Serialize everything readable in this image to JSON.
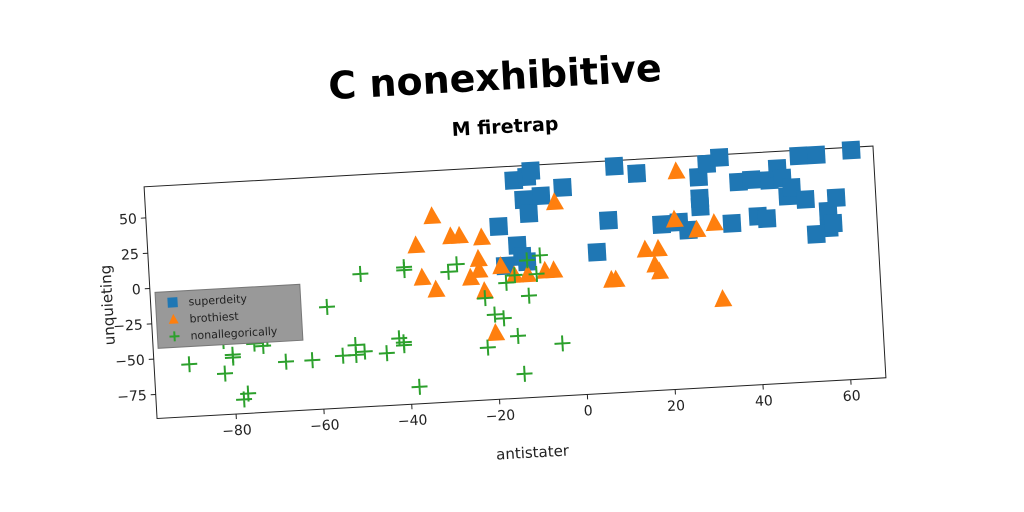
{
  "chart_data": {
    "type": "scatter",
    "suptitle": "C nonexhibitive",
    "title": "M firetrap",
    "xlabel": "antistater",
    "ylabel": "unquieting",
    "xlim": [
      -98,
      68
    ],
    "ylim": [
      -92,
      72
    ],
    "xticks": [
      -80,
      -60,
      -40,
      -20,
      0,
      20,
      40,
      60
    ],
    "yticks": [
      -75,
      -50,
      -25,
      0,
      25,
      50
    ],
    "grid": false,
    "legend_position": "center-left",
    "series": [
      {
        "name": "superdeity",
        "marker": "square",
        "color": "#1f77b4",
        "points": [
          [
            -18,
            30
          ],
          [
            -14,
            62
          ],
          [
            -11,
            64
          ],
          [
            -10,
            68
          ],
          [
            -8,
            50
          ],
          [
            -3,
            55
          ],
          [
            -12,
            48
          ],
          [
            -11,
            38
          ],
          [
            -14,
            16
          ],
          [
            -13,
            8
          ],
          [
            -12,
            4
          ],
          [
            -17,
            2
          ],
          [
            4,
            8
          ],
          [
            7,
            30
          ],
          [
            9,
            68
          ],
          [
            14,
            62
          ],
          [
            19,
            25
          ],
          [
            23,
            26
          ],
          [
            25,
            20
          ],
          [
            28,
            36
          ],
          [
            28,
            42
          ],
          [
            28,
            57
          ],
          [
            30,
            66
          ],
          [
            33,
            70
          ],
          [
            35,
            23
          ],
          [
            37,
            52
          ],
          [
            41,
            27
          ],
          [
            43,
            25
          ],
          [
            44,
            52
          ],
          [
            46,
            60
          ],
          [
            47,
            53
          ],
          [
            48,
            40
          ],
          [
            49,
            46
          ],
          [
            51,
            68
          ],
          [
            52,
            37
          ],
          [
            55,
            68
          ],
          [
            57,
            28
          ],
          [
            57,
            16
          ],
          [
            58,
            19
          ],
          [
            59,
            37
          ],
          [
            63,
            70
          ],
          [
            54,
            12
          ],
          [
            40,
            53
          ]
        ]
      },
      {
        "name": "brothiest",
        "marker": "triangle",
        "color": "#ff7f0e",
        "points": [
          [
            -37,
            20
          ],
          [
            -33,
            40
          ],
          [
            -29,
            25
          ],
          [
            -27,
            25
          ],
          [
            -22,
            23
          ],
          [
            -23,
            8
          ],
          [
            -23,
            0
          ],
          [
            -25,
            -5
          ],
          [
            -22,
            -15
          ],
          [
            -18,
            2
          ],
          [
            -15,
            -5
          ],
          [
            -12,
            -5
          ],
          [
            -8,
            -3
          ],
          [
            -6,
            -3
          ],
          [
            -20,
            -45
          ],
          [
            -5,
            45
          ],
          [
            -36,
            -3
          ],
          [
            -33,
            -12
          ],
          [
            7,
            -12
          ],
          [
            8,
            -12
          ],
          [
            15,
            8
          ],
          [
            17,
            -3
          ],
          [
            18,
            8
          ],
          [
            18,
            -8
          ],
          [
            22,
            28
          ],
          [
            23,
            62
          ],
          [
            27,
            20
          ],
          [
            31,
            24
          ],
          [
            32,
            -30
          ]
        ]
      },
      {
        "name": "nonallegorically",
        "marker": "plus",
        "color": "#2ca02c",
        "points": [
          [
            -90,
            -55
          ],
          [
            -82,
            -40
          ],
          [
            -82,
            -63
          ],
          [
            -80,
            -50
          ],
          [
            -80,
            -52
          ],
          [
            -78,
            -82
          ],
          [
            -77,
            -78
          ],
          [
            -75,
            -43
          ],
          [
            -73,
            -45
          ],
          [
            -72,
            -40
          ],
          [
            -68,
            -57
          ],
          [
            -62,
            -57
          ],
          [
            -58,
            -20
          ],
          [
            -55,
            -55
          ],
          [
            -52,
            -48
          ],
          [
            -52,
            -55
          ],
          [
            -50,
            -53
          ],
          [
            -50,
            2
          ],
          [
            -45,
            -55
          ],
          [
            -42,
            -45
          ],
          [
            -41,
            -48
          ],
          [
            -41,
            -50
          ],
          [
            -40,
            5
          ],
          [
            -40,
            3
          ],
          [
            -38,
            -80
          ],
          [
            -30,
            0
          ],
          [
            -28,
            5
          ],
          [
            -22,
            -20
          ],
          [
            -22,
            -55
          ],
          [
            -20,
            -32
          ],
          [
            -18,
            -35
          ],
          [
            -17,
            -10
          ],
          [
            -15,
            -48
          ],
          [
            -15,
            -5
          ],
          [
            -14,
            -75
          ],
          [
            -12,
            -20
          ],
          [
            -12,
            5
          ],
          [
            -10,
            -5
          ],
          [
            -9,
            8
          ],
          [
            -5,
            -55
          ]
        ]
      }
    ]
  }
}
